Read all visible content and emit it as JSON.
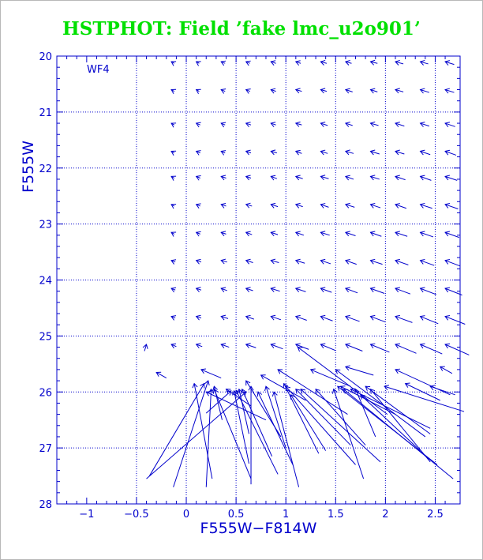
{
  "title": "HSTPHOT: Field ’fake lmc_u2o901’",
  "chart_data": {
    "type": "quiver",
    "panel_label": "WF4",
    "xlabel": "F555W−F814W",
    "ylabel": "F555W",
    "xlim": [
      -1.3,
      2.75
    ],
    "ylim": [
      28,
      20
    ],
    "y_inverted": true,
    "xticks": [
      -1,
      -0.5,
      0,
      0.5,
      1,
      1.5,
      2,
      2.5
    ],
    "xtick_labels": [
      "−1",
      "−0.5",
      "0",
      "0.5",
      "1",
      "1.5",
      "2",
      "2.5"
    ],
    "yticks": [
      20,
      21,
      22,
      23,
      24,
      25,
      26,
      27,
      28
    ],
    "ytick_labels": [
      "20",
      "21",
      "22",
      "23",
      "24",
      "25",
      "26",
      "27",
      "28"
    ],
    "grid_x": [
      -0.5,
      0,
      0.5,
      1,
      1.5,
      2,
      2.5
    ],
    "grid_y": [
      21,
      22,
      23,
      24,
      25,
      26,
      27
    ],
    "grid": "dotted",
    "color": "#0000cc",
    "grid_columns_x": [
      -0.4,
      -0.15,
      0.1,
      0.35,
      0.6,
      0.85,
      1.1,
      1.35,
      1.6,
      1.85,
      2.1,
      2.35,
      2.6
    ],
    "grid_rows": [
      {
        "y": 20.1,
        "dx": [
          0,
          0.01,
          0.01,
          0.02,
          0.02,
          0.03,
          0.03,
          0.04,
          0.04,
          0.05,
          0.06,
          0.06,
          0.07
        ],
        "dy": [
          0,
          0,
          0,
          0,
          0.01,
          0.01,
          0.01,
          0.01,
          0.01,
          0.01,
          0.02,
          0.02,
          0.03
        ]
      },
      {
        "y": 20.6,
        "dx": [
          0,
          0.01,
          0.01,
          0.02,
          0.02,
          0.03,
          0.04,
          0.04,
          0.05,
          0.05,
          0.06,
          0.07,
          0.07
        ],
        "dy": [
          0,
          0,
          0,
          0,
          0.01,
          0.01,
          0.01,
          0.01,
          0.02,
          0.02,
          0.02,
          0.03,
          0.03
        ]
      },
      {
        "y": 21.2,
        "dx": [
          0,
          0.01,
          0.02,
          0.02,
          0.03,
          0.03,
          0.04,
          0.05,
          0.05,
          0.06,
          0.07,
          0.07,
          0.08
        ],
        "dy": [
          0,
          0,
          0,
          0.01,
          0.01,
          0.01,
          0.01,
          0.02,
          0.02,
          0.02,
          0.03,
          0.03,
          0.04
        ]
      },
      {
        "y": 21.7,
        "dx": [
          0,
          0.01,
          0.02,
          0.02,
          0.03,
          0.04,
          0.04,
          0.05,
          0.06,
          0.07,
          0.07,
          0.08,
          0.09
        ],
        "dy": [
          0,
          0,
          0,
          0.01,
          0.01,
          0.01,
          0.02,
          0.02,
          0.02,
          0.03,
          0.03,
          0.04,
          0.05
        ]
      },
      {
        "y": 22.15,
        "dx": [
          0,
          0.01,
          0.02,
          0.03,
          0.03,
          0.04,
          0.05,
          0.06,
          0.06,
          0.07,
          0.08,
          0.09,
          0.1
        ],
        "dy": [
          0,
          0,
          0,
          0.01,
          0.01,
          0.02,
          0.02,
          0.02,
          0.03,
          0.03,
          0.04,
          0.05,
          0.05
        ]
      },
      {
        "y": 22.65,
        "dx": [
          0,
          0.01,
          0.02,
          0.03,
          0.04,
          0.05,
          0.05,
          0.06,
          0.07,
          0.08,
          0.09,
          0.1,
          0.11
        ],
        "dy": [
          0,
          0,
          0.01,
          0.01,
          0.01,
          0.02,
          0.02,
          0.03,
          0.03,
          0.04,
          0.05,
          0.05,
          0.06
        ]
      },
      {
        "y": 23.15,
        "dx": [
          0,
          0.01,
          0.02,
          0.03,
          0.04,
          0.05,
          0.06,
          0.07,
          0.08,
          0.09,
          0.1,
          0.11,
          0.12
        ],
        "dy": [
          0,
          0,
          0.01,
          0.01,
          0.02,
          0.02,
          0.03,
          0.03,
          0.04,
          0.05,
          0.05,
          0.06,
          0.07
        ]
      },
      {
        "y": 23.65,
        "dx": [
          0,
          0.02,
          0.03,
          0.04,
          0.05,
          0.06,
          0.07,
          0.08,
          0.09,
          0.1,
          0.11,
          0.12,
          0.13
        ],
        "dy": [
          0,
          0,
          0.01,
          0.01,
          0.02,
          0.02,
          0.03,
          0.04,
          0.05,
          0.05,
          0.06,
          0.07,
          0.08
        ]
      },
      {
        "y": 24.15,
        "dx": [
          0,
          0.02,
          0.03,
          0.04,
          0.05,
          0.07,
          0.08,
          0.09,
          0.1,
          0.12,
          0.13,
          0.14,
          0.15
        ],
        "dy": [
          0,
          0,
          0.01,
          0.02,
          0.02,
          0.03,
          0.04,
          0.05,
          0.06,
          0.07,
          0.08,
          0.09,
          0.1
        ]
      },
      {
        "y": 24.65,
        "dx": [
          0,
          0.02,
          0.03,
          0.05,
          0.06,
          0.08,
          0.09,
          0.1,
          0.12,
          0.13,
          0.15,
          0.16,
          0.18
        ],
        "dy": [
          0,
          0,
          0.01,
          0.02,
          0.03,
          0.04,
          0.05,
          0.06,
          0.07,
          0.08,
          0.09,
          0.11,
          0.12
        ]
      },
      {
        "y": 25.15,
        "dx": [
          -0.04,
          0.03,
          0.04,
          0.06,
          0.08,
          0.1,
          0.11,
          0.13,
          0.15,
          0.17,
          0.19,
          0.2,
          0.22
        ],
        "dy": [
          0.1,
          0.02,
          0.02,
          0.03,
          0.04,
          0.06,
          0.07,
          0.09,
          0.1,
          0.12,
          0.14,
          0.15,
          0.17
        ]
      }
    ],
    "faint_vectors": [
      {
        "x": -0.3,
        "y": 25.65,
        "dx": 0.1,
        "dy": 0.1
      },
      {
        "x": 0.15,
        "y": 25.6,
        "dx": 0.2,
        "dy": 0.15
      },
      {
        "x": 0.4,
        "y": 25.95,
        "dx": 0.25,
        "dy": 0.3
      },
      {
        "x": 0.75,
        "y": 25.7,
        "dx": 0.45,
        "dy": 0.45
      },
      {
        "x": 0.92,
        "y": 25.6,
        "dx": 0.7,
        "dy": 0.8
      },
      {
        "x": 1.12,
        "y": 25.2,
        "dx": 0.9,
        "dy": 1.2
      },
      {
        "x": 1.5,
        "y": 25.6,
        "dx": 0.9,
        "dy": 1.2
      },
      {
        "x": 1.55,
        "y": 25.9,
        "dx": 0.55,
        "dy": 0.5
      },
      {
        "x": 1.65,
        "y": 25.95,
        "dx": 0.8,
        "dy": 0.7
      },
      {
        "x": 1.8,
        "y": 25.9,
        "dx": 0.65,
        "dy": 0.85
      },
      {
        "x": 1.99,
        "y": 25.9,
        "dx": 0.8,
        "dy": 0.45
      },
      {
        "x": 2.1,
        "y": 25.6,
        "dx": 0.55,
        "dy": 0.45
      },
      {
        "x": 2.2,
        "y": 25.85,
        "dx": 0.35,
        "dy": 0.3
      },
      {
        "x": 2.45,
        "y": 25.9,
        "dx": 0.25,
        "dy": 0.15
      },
      {
        "x": 2.55,
        "y": 25.55,
        "dx": 0.12,
        "dy": 0.12
      },
      {
        "x": 1.25,
        "y": 25.6,
        "dx": 0.4,
        "dy": 0.3
      },
      {
        "x": 1.6,
        "y": 25.55,
        "dx": 0.28,
        "dy": 0.15
      }
    ],
    "faint_vectors_2": [
      {
        "x": 0.08,
        "y": 25.85,
        "dx": 0.18,
        "dy": 1.7
      },
      {
        "x": 0.18,
        "y": 25.85,
        "dx": -0.55,
        "dy": 1.65
      },
      {
        "x": 0.22,
        "y": 25.8,
        "dx": -0.35,
        "dy": 1.9
      },
      {
        "x": 0.25,
        "y": 25.95,
        "dx": -0.05,
        "dy": 1.75
      },
      {
        "x": 0.28,
        "y": 25.9,
        "dx": 0.08,
        "dy": 0.6
      },
      {
        "x": 0.28,
        "y": 25.95,
        "dx": 0.37,
        "dy": 1.6
      },
      {
        "x": 0.45,
        "y": 25.98,
        "dx": -0.25,
        "dy": 0.4
      },
      {
        "x": 0.48,
        "y": 25.98,
        "dx": 0.15,
        "dy": 1.3
      },
      {
        "x": 0.5,
        "y": 25.97,
        "dx": 0.42,
        "dy": 1.5
      },
      {
        "x": 0.53,
        "y": 25.95,
        "dx": 0.1,
        "dy": 0.8
      },
      {
        "x": 0.56,
        "y": 25.95,
        "dx": 0.3,
        "dy": 1.2
      },
      {
        "x": 0.6,
        "y": 25.8,
        "dx": 0.35,
        "dy": 1.0
      },
      {
        "x": 0.65,
        "y": 25.9,
        "dx": 0.0,
        "dy": 1.75
      },
      {
        "x": 0.72,
        "y": 26.0,
        "dx": 0.35,
        "dy": 1.3
      },
      {
        "x": 0.8,
        "y": 25.9,
        "dx": 0.2,
        "dy": 1.1
      },
      {
        "x": 0.88,
        "y": 26.0,
        "dx": 0.25,
        "dy": 1.7
      },
      {
        "x": 0.98,
        "y": 25.85,
        "dx": 0.35,
        "dy": 1.25
      },
      {
        "x": 1.0,
        "y": 25.9,
        "dx": 0.7,
        "dy": 1.4
      },
      {
        "x": 1.1,
        "y": 25.95,
        "dx": 0.55,
        "dy": 1.0
      },
      {
        "x": 1.15,
        "y": 25.95,
        "dx": 0.8,
        "dy": 1.3
      },
      {
        "x": 1.3,
        "y": 25.95,
        "dx": 0.5,
        "dy": 1.0
      },
      {
        "x": 1.48,
        "y": 25.95,
        "dx": 0.3,
        "dy": 1.6
      },
      {
        "x": 1.52,
        "y": 25.9,
        "dx": 1.0,
        "dy": 1.4
      },
      {
        "x": 1.58,
        "y": 25.95,
        "dx": 1.1,
        "dy": 1.6
      },
      {
        "x": 1.7,
        "y": 25.95,
        "dx": 0.2,
        "dy": 0.85
      },
      {
        "x": 1.85,
        "y": 25.95,
        "dx": 0.6,
        "dy": 1.3
      },
      {
        "x": 1.75,
        "y": 26.05,
        "dx": 0.6,
        "dy": 1.0
      },
      {
        "x": 0.2,
        "y": 26.0,
        "dx": 0.6,
        "dy": 0.5
      },
      {
        "x": 0.6,
        "y": 26.0,
        "dx": -1.0,
        "dy": 1.55
      },
      {
        "x": 1.05,
        "y": 26.05,
        "dx": 0.35,
        "dy": 1.0
      }
    ]
  }
}
